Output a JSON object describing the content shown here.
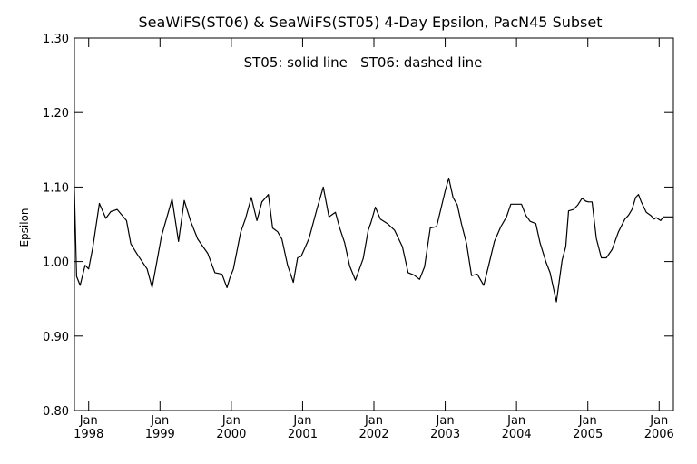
{
  "chart_data": {
    "type": "line",
    "title": "SeaWiFS(ST06) & SeaWiFS(ST05) 4-Day Epsilon, PacN45 Subset",
    "annotation": "ST05: solid line   ST06: dashed line",
    "xlabel": "",
    "ylabel": "Epsilon",
    "ylim": [
      0.8,
      1.3
    ],
    "xlim": [
      1997.8,
      2006.2
    ],
    "y_ticks": [
      "0.80",
      "0.90",
      "1.00",
      "1.10",
      "1.20",
      "1.30"
    ],
    "x_ticks": [
      {
        "month": "Jan",
        "year": "1998",
        "x": 1998.0
      },
      {
        "month": "Jan",
        "year": "1999",
        "x": 1999.0
      },
      {
        "month": "Jan",
        "year": "2000",
        "x": 2000.0
      },
      {
        "month": "Jan",
        "year": "2001",
        "x": 2001.0
      },
      {
        "month": "Jan",
        "year": "2002",
        "x": 2002.0
      },
      {
        "month": "Jan",
        "year": "2003",
        "x": 2003.0
      },
      {
        "month": "Jan",
        "year": "2004",
        "x": 2004.0
      },
      {
        "month": "Jan",
        "year": "2005",
        "x": 2005.0
      },
      {
        "month": "Jan",
        "year": "2006",
        "x": 2006.0
      }
    ],
    "series": [
      {
        "line_style": "solid",
        "color": "#000000",
        "x": [
          1997.8,
          1997.83,
          1997.88,
          1997.95,
          1998.0,
          1998.06,
          1998.15,
          1998.24,
          1998.31,
          1998.4,
          1998.53,
          1998.59,
          1998.68,
          1998.82,
          1998.89,
          1998.95,
          1999.02,
          1999.08,
          1999.17,
          1999.26,
          1999.34,
          1999.43,
          1999.53,
          1999.67,
          1999.77,
          1999.87,
          1999.94,
          1999.98,
          2000.03,
          2000.13,
          2000.2,
          2000.28,
          2000.36,
          2000.43,
          2000.52,
          2000.58,
          2000.65,
          2000.71,
          2000.79,
          2000.87,
          2000.93,
          2000.98,
          2001.09,
          2001.2,
          2001.29,
          2001.37,
          2001.46,
          2001.52,
          2001.59,
          2001.66,
          2001.74,
          2001.85,
          2001.92,
          2001.96,
          2002.02,
          2002.09,
          2002.19,
          2002.29,
          2002.4,
          2002.48,
          2002.56,
          2002.64,
          2002.71,
          2002.79,
          2002.88,
          2003.0,
          2003.05,
          2003.11,
          2003.17,
          2003.23,
          2003.3,
          2003.37,
          2003.45,
          2003.54,
          2003.61,
          2003.69,
          2003.78,
          2003.86,
          2003.92,
          2003.97,
          2004.01,
          2004.07,
          2004.13,
          2004.19,
          2004.27,
          2004.33,
          2004.41,
          2004.47,
          2004.56,
          2004.64,
          2004.69,
          2004.73,
          2004.8,
          2004.86,
          2004.92,
          2004.97,
          2005.01,
          2005.06,
          2005.12,
          2005.19,
          2005.26,
          2005.34,
          2005.43,
          2005.52,
          2005.57,
          2005.62,
          2005.67,
          2005.71,
          2005.75,
          2005.82,
          2005.88,
          2005.93,
          2005.96,
          2006.02,
          2006.06,
          2006.13,
          2006.2
        ],
        "y": [
          1.095,
          0.98,
          0.968,
          0.995,
          0.99,
          1.02,
          1.078,
          1.058,
          1.067,
          1.07,
          1.055,
          1.024,
          1.01,
          0.99,
          0.965,
          0.997,
          1.034,
          1.054,
          1.084,
          1.027,
          1.082,
          1.054,
          1.03,
          1.011,
          0.985,
          0.983,
          0.965,
          0.978,
          0.99,
          1.039,
          1.058,
          1.086,
          1.055,
          1.08,
          1.09,
          1.045,
          1.04,
          1.03,
          0.995,
          0.972,
          1.005,
          1.007,
          1.031,
          1.07,
          1.1,
          1.06,
          1.066,
          1.045,
          1.025,
          0.994,
          0.975,
          1.004,
          1.042,
          1.053,
          1.073,
          1.057,
          1.051,
          1.042,
          1.02,
          0.985,
          0.982,
          0.976,
          0.993,
          1.045,
          1.047,
          1.095,
          1.112,
          1.086,
          1.076,
          1.05,
          1.024,
          0.981,
          0.983,
          0.968,
          0.995,
          1.027,
          1.047,
          1.06,
          1.077,
          1.077,
          1.077,
          1.077,
          1.062,
          1.054,
          1.051,
          1.025,
          1.0,
          0.985,
          0.946,
          1.002,
          1.02,
          1.068,
          1.07,
          1.076,
          1.085,
          1.081,
          1.08,
          1.08,
          1.031,
          1.005,
          1.005,
          1.016,
          1.04,
          1.057,
          1.062,
          1.07,
          1.086,
          1.09,
          1.08,
          1.066,
          1.062,
          1.057,
          1.059,
          1.055,
          1.06,
          1.06,
          1.06
        ]
      }
    ],
    "grid": false,
    "legend": "none"
  }
}
